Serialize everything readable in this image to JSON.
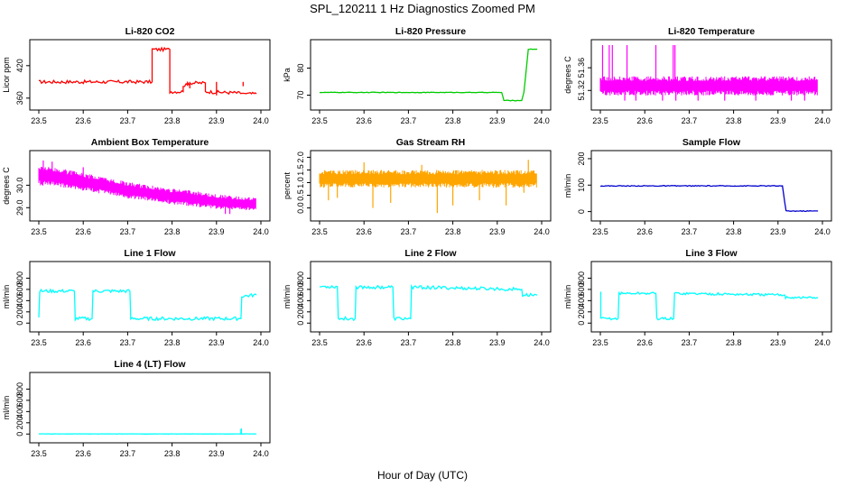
{
  "figure": {
    "title": "SPL_120211  1 Hz Diagnostics Zoomed PM",
    "xlabel": "Hour of Day (UTC)"
  },
  "chart_data": [
    {
      "type": "line",
      "title": "Li-820 CO2",
      "ylabel": "Licor ppm",
      "color": "#ff0000",
      "xlim": [
        23.5,
        24.0
      ],
      "ylim": [
        348,
        458
      ],
      "yticks": [
        360,
        420
      ],
      "ytick_labels": [
        "360",
        "420"
      ],
      "series": [
        {
          "x": [
            23.5,
            23.755,
            23.755,
            23.795,
            23.795,
            23.825,
            23.825,
            23.835,
            23.835,
            23.875,
            23.875,
            23.9,
            23.94,
            23.96,
            23.97,
            23.99
          ],
          "y": [
            390,
            390,
            450,
            450,
            372,
            372,
            384,
            384,
            388,
            388,
            372,
            371,
            370,
            369,
            368,
            368
          ]
        }
      ],
      "noise": 3,
      "spikes": [
        [
          23.84,
          378
        ],
        [
          23.96,
          382
        ],
        [
          23.9,
          365
        ]
      ]
    },
    {
      "type": "line",
      "title": "Li-820 Pressure",
      "ylabel": "kPa",
      "color": "#00cc00",
      "xlim": [
        23.5,
        24.0
      ],
      "ylim": [
        66.5,
        88.5
      ],
      "yticks": [
        70,
        80
      ],
      "ytick_labels": [
        "70",
        "80"
      ],
      "series": [
        {
          "x": [
            23.5,
            23.91,
            23.915,
            23.955,
            23.96,
            23.97,
            23.99
          ],
          "y": [
            71,
            71,
            68,
            68,
            71,
            87,
            87
          ]
        }
      ],
      "noise": 0.1,
      "spikes": []
    },
    {
      "type": "band",
      "title": "Li-820 Temperature",
      "ylabel": "degrees C",
      "color": "#ff00ff",
      "xlim": [
        23.5,
        24.0
      ],
      "ylim": [
        51.295,
        51.4
      ],
      "yticks": [
        51.32,
        51.36
      ],
      "ytick_labels": [
        "51.32",
        "51.36"
      ],
      "series": [
        {
          "x": [
            23.5,
            23.99
          ],
          "y_low": [
            51.311,
            51.311
          ],
          "y_high": [
            51.345,
            51.345
          ]
        }
      ],
      "bars": [
        [
          23.505,
          51.4
        ],
        [
          23.52,
          51.4
        ],
        [
          23.527,
          51.4
        ],
        [
          23.56,
          51.4
        ],
        [
          23.625,
          51.4
        ],
        [
          23.664,
          51.4
        ],
        [
          23.668,
          51.4
        ],
        [
          23.555,
          51.302
        ],
        [
          23.58,
          51.302
        ],
        [
          23.64,
          51.302
        ],
        [
          23.67,
          51.302
        ],
        [
          23.72,
          51.302
        ],
        [
          23.78,
          51.302
        ],
        [
          23.85,
          51.302
        ],
        [
          23.93,
          51.302
        ],
        [
          23.96,
          51.302
        ]
      ]
    },
    {
      "type": "band",
      "title": "Ambient Box Temperature",
      "ylabel": "degrees C",
      "color": "#ff00ff",
      "xlim": [
        23.5,
        24.0
      ],
      "ylim": [
        28.65,
        31.3
      ],
      "yticks": [
        29.0,
        30.0
      ],
      "ytick_labels": [
        "29.0",
        "30.0"
      ],
      "series": [
        {
          "x": [
            23.5,
            23.55,
            23.6,
            23.65,
            23.7,
            23.75,
            23.8,
            23.85,
            23.9,
            23.95,
            23.99
          ],
          "y_low": [
            30.0,
            29.9,
            29.75,
            29.6,
            29.4,
            29.3,
            29.15,
            29.05,
            28.95,
            28.9,
            28.85
          ],
          "y_high": [
            30.9,
            30.75,
            30.55,
            30.35,
            30.15,
            30.0,
            29.85,
            29.75,
            29.6,
            29.5,
            29.45
          ]
        }
      ],
      "bars": [
        [
          23.51,
          31.1
        ],
        [
          23.53,
          31.05
        ],
        [
          23.6,
          30.8
        ],
        [
          23.92,
          28.72
        ],
        [
          23.93,
          28.72
        ]
      ]
    },
    {
      "type": "band",
      "title": "Gas Stream RH",
      "ylabel": "percent",
      "color": "#ffa500",
      "xlim": [
        23.5,
        24.0
      ],
      "ylim": [
        -0.3,
        2.05
      ],
      "yticks": [
        0.0,
        0.5,
        1.0,
        1.5,
        2.0
      ],
      "ytick_labels": [
        "0.0",
        "0.5",
        "1.0",
        "1.5",
        "2.0"
      ],
      "series": [
        {
          "x": [
            23.5,
            23.99
          ],
          "y_low": [
            0.8,
            0.8
          ],
          "y_high": [
            1.5,
            1.5
          ]
        }
      ],
      "bars": [
        [
          23.52,
          0.3
        ],
        [
          23.54,
          0.4
        ],
        [
          23.62,
          0.0
        ],
        [
          23.66,
          0.2
        ],
        [
          23.765,
          -0.2
        ],
        [
          23.8,
          0.1
        ],
        [
          23.86,
          0.3
        ],
        [
          23.92,
          0.1
        ],
        [
          23.96,
          0.6
        ],
        [
          23.6,
          1.8
        ],
        [
          23.73,
          1.7
        ],
        [
          23.97,
          1.9
        ]
      ]
    },
    {
      "type": "line",
      "title": "Sample Flow",
      "ylabel": "ml/min",
      "color": "#0000cc",
      "xlim": [
        23.5,
        24.0
      ],
      "ylim": [
        -15,
        210
      ],
      "yticks": [
        0,
        100,
        200
      ],
      "ytick_labels": [
        "0",
        "100",
        "200"
      ],
      "series": [
        {
          "x": [
            23.5,
            23.91,
            23.918,
            23.99
          ],
          "y": [
            97,
            97,
            2,
            2
          ]
        }
      ],
      "noise": 1.5,
      "spikes": []
    },
    {
      "type": "line",
      "title": "Line 1 Flow",
      "ylabel": "ml/min",
      "color": "#00ffff",
      "xlim": [
        23.5,
        24.0
      ],
      "ylim": [
        -60,
        1000
      ],
      "yticks": [
        0,
        200,
        400,
        600,
        800
      ],
      "ytick_labels": [
        "0",
        "200",
        "400",
        "600",
        "800"
      ],
      "series": [
        {
          "x": [
            23.5,
            23.502,
            23.58,
            23.582,
            23.62,
            23.622,
            23.705,
            23.707,
            23.955,
            23.957,
            23.99
          ],
          "y": [
            100,
            570,
            570,
            80,
            80,
            570,
            570,
            80,
            80,
            480,
            500
          ]
        }
      ],
      "noise": 30,
      "spikes": []
    },
    {
      "type": "line",
      "title": "Line 2 Flow",
      "ylabel": "ml/min",
      "color": "#00ffff",
      "xlim": [
        23.5,
        24.0
      ],
      "ylim": [
        -60,
        1000
      ],
      "yticks": [
        0,
        200,
        400,
        600,
        800
      ],
      "ytick_labels": [
        "0",
        "200",
        "400",
        "600",
        "800"
      ],
      "series": [
        {
          "x": [
            23.5,
            23.54,
            23.542,
            23.58,
            23.582,
            23.665,
            23.667,
            23.705,
            23.707,
            23.955,
            23.957,
            23.99
          ],
          "y": [
            650,
            650,
            80,
            80,
            640,
            640,
            80,
            80,
            640,
            600,
            500,
            500
          ]
        }
      ],
      "noise": 30,
      "spikes": []
    },
    {
      "type": "line",
      "title": "Line 3 Flow",
      "ylabel": "ml/min",
      "color": "#00ffff",
      "xlim": [
        23.5,
        24.0
      ],
      "ylim": [
        -60,
        1000
      ],
      "yticks": [
        0,
        200,
        400,
        600,
        800
      ],
      "ytick_labels": [
        "0",
        "200",
        "400",
        "600",
        "800"
      ],
      "series": [
        {
          "x": [
            23.5,
            23.502,
            23.54,
            23.542,
            23.625,
            23.627,
            23.665,
            23.667,
            23.915,
            23.917,
            23.99
          ],
          "y": [
            100,
            80,
            80,
            530,
            530,
            80,
            80,
            530,
            500,
            460,
            450
          ]
        }
      ],
      "noise": 22,
      "spikes": [
        [
          23.501,
          560
        ]
      ]
    },
    {
      "type": "line",
      "title": "Line 4 (LT) Flow",
      "ylabel": "ml/min",
      "color": "#00ffff",
      "xlim": [
        23.5,
        24.0
      ],
      "ylim": [
        -60,
        1000
      ],
      "yticks": [
        0,
        200,
        400,
        600,
        800
      ],
      "ytick_labels": [
        "0",
        "200",
        "400",
        "600",
        "800"
      ],
      "series": [
        {
          "x": [
            23.5,
            23.99
          ],
          "y": [
            2,
            2
          ]
        }
      ],
      "noise": 2,
      "spikes": [
        [
          23.955,
          90
        ],
        [
          23.956,
          100
        ]
      ]
    }
  ],
  "shared_xticks": [
    23.5,
    23.6,
    23.7,
    23.8,
    23.9,
    24.0
  ],
  "shared_xtick_labels": [
    "23.5",
    "23.6",
    "23.7",
    "23.8",
    "23.9",
    "24.0"
  ]
}
